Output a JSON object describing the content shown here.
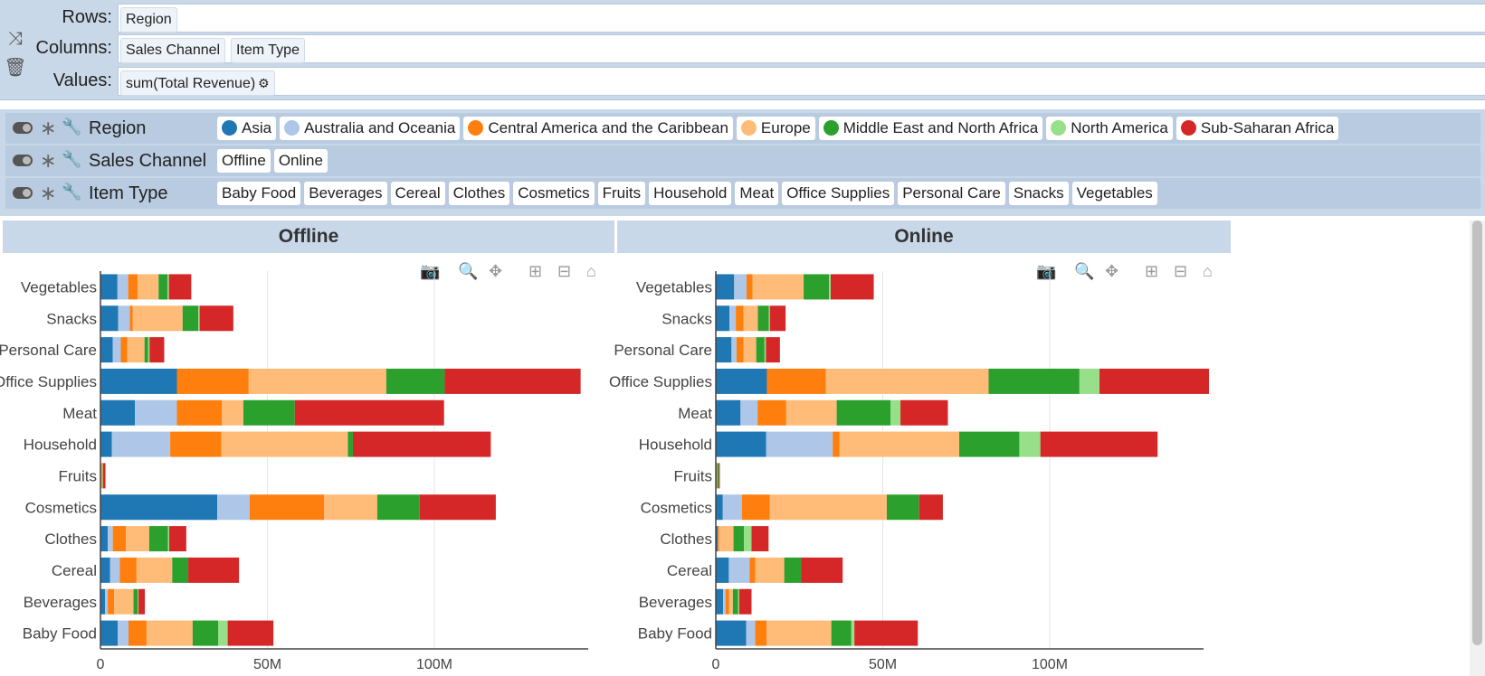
{
  "shelves": {
    "rows": {
      "label": "Rows:",
      "chips": [
        "Region"
      ]
    },
    "columns": {
      "label": "Columns:",
      "chips": [
        "Sales Channel",
        "Item Type"
      ]
    },
    "values": {
      "label": "Values:",
      "chips": [
        "sum(Total Revenue)"
      ]
    }
  },
  "filters": [
    {
      "name": "Region",
      "values": [
        "Asia",
        "Australia and Oceania",
        "Central America and the Caribbean",
        "Europe",
        "Middle East and North Africa",
        "North America",
        "Sub-Saharan Africa"
      ],
      "colors": [
        "#1f77b4",
        "#aec7e8",
        "#ff7f0e",
        "#ffbb78",
        "#2ca02c",
        "#98df8a",
        "#d62728"
      ]
    },
    {
      "name": "Sales Channel",
      "values": [
        "Offline",
        "Online"
      ]
    },
    {
      "name": "Item Type",
      "values": [
        "Baby Food",
        "Beverages",
        "Cereal",
        "Clothes",
        "Cosmetics",
        "Fruits",
        "Household",
        "Meat",
        "Office Supplies",
        "Personal Care",
        "Snacks",
        "Vegetables"
      ]
    }
  ],
  "facets": {
    "offline": "Offline",
    "online": "Online"
  },
  "icons": [
    "shuffle-icon",
    "trash-icon",
    "gear-icon",
    "toggle-icon",
    "asterisk-icon",
    "wrench-icon",
    "camera-icon",
    "zoom-icon",
    "pan-icon",
    "zoom-in-icon",
    "zoom-out-icon",
    "home-icon"
  ],
  "chart_data": [
    {
      "type": "bar",
      "orientation": "horizontal",
      "stacked": true,
      "title": "Offline",
      "categories": [
        "Baby Food",
        "Beverages",
        "Cereal",
        "Clothes",
        "Cosmetics",
        "Fruits",
        "Household",
        "Meat",
        "Office Supplies",
        "Personal Care",
        "Snacks",
        "Vegetables"
      ],
      "xticks": [
        "0",
        "50M",
        "100M"
      ],
      "xlim": [
        0,
        148
      ],
      "series": [
        {
          "name": "Asia",
          "color": "#1f77b4",
          "values": [
            5.2,
            1.4,
            2.9,
            2.2,
            35.0,
            0.1,
            3.4,
            10.3,
            22.9,
            3.7,
            5.3,
            5.1
          ]
        },
        {
          "name": "Australia and Oceania",
          "color": "#aec7e8",
          "values": [
            3.2,
            0.8,
            2.9,
            1.5,
            9.7,
            0.1,
            17.5,
            12.6,
            0.0,
            2.4,
            3.5,
            3.2
          ]
        },
        {
          "name": "Central America and the Caribbean",
          "color": "#ff7f0e",
          "values": [
            5.4,
            1.9,
            5.0,
            3.9,
            22.3,
            0.3,
            15.3,
            13.5,
            21.5,
            1.9,
            0.9,
            2.8
          ]
        },
        {
          "name": "Europe",
          "color": "#ffbb78",
          "values": [
            13.8,
            5.8,
            10.7,
            7.0,
            15.9,
            0.2,
            37.9,
            6.4,
            41.2,
            5.2,
            14.9,
            6.3
          ]
        },
        {
          "name": "Middle East and North Africa",
          "color": "#2ca02c",
          "values": [
            7.7,
            1.3,
            4.8,
            5.6,
            12.7,
            0.1,
            1.5,
            15.4,
            17.5,
            1.1,
            4.7,
            2.7
          ]
        },
        {
          "name": "North America",
          "color": "#98df8a",
          "values": [
            2.8,
            0.2,
            0.0,
            0.4,
            0.0,
            0.0,
            0.0,
            0.0,
            0.0,
            0.4,
            0.4,
            0.4
          ]
        },
        {
          "name": "Sub-Saharan Africa",
          "color": "#d62728",
          "values": [
            13.7,
            1.9,
            15.2,
            5.1,
            22.8,
            0.7,
            41.3,
            44.7,
            40.7,
            4.4,
            10.1,
            6.7
          ]
        }
      ]
    },
    {
      "type": "bar",
      "orientation": "horizontal",
      "stacked": true,
      "title": "Online",
      "categories": [
        "Baby Food",
        "Beverages",
        "Cereal",
        "Clothes",
        "Cosmetics",
        "Fruits",
        "Household",
        "Meat",
        "Office Supplies",
        "Personal Care",
        "Snacks",
        "Vegetables"
      ],
      "xticks": [
        "0",
        "50M",
        "100M"
      ],
      "xlim": [
        0,
        148
      ],
      "series": [
        {
          "name": "Asia",
          "color": "#1f77b4",
          "values": [
            9.1,
            2.2,
            3.9,
            0.6,
            2.1,
            0.2,
            15.1,
            7.4,
            15.3,
            4.7,
            4.1,
            5.5
          ]
        },
        {
          "name": "Australia and Oceania",
          "color": "#aec7e8",
          "values": [
            2.7,
            0.7,
            6.2,
            0.0,
            5.7,
            0.0,
            19.9,
            5.1,
            0.0,
            1.5,
            1.9,
            3.7
          ]
        },
        {
          "name": "Central America and the Caribbean",
          "color": "#ff7f0e",
          "values": [
            3.4,
            1.1,
            1.7,
            0.4,
            8.4,
            0.1,
            2.0,
            8.6,
            17.7,
            2.1,
            2.3,
            1.8
          ]
        },
        {
          "name": "Europe",
          "color": "#ffbb78",
          "values": [
            19.4,
            1.1,
            8.7,
            4.3,
            35.0,
            0.1,
            35.9,
            15.1,
            48.7,
            3.8,
            4.3,
            15.3
          ]
        },
        {
          "name": "Middle East and North Africa",
          "color": "#2ca02c",
          "values": [
            6.0,
            1.6,
            5.0,
            3.1,
            9.7,
            0.5,
            18.0,
            16.1,
            27.2,
            2.5,
            3.3,
            7.6
          ]
        },
        {
          "name": "North America",
          "color": "#98df8a",
          "values": [
            0.9,
            0.3,
            0.0,
            2.3,
            0.0,
            0.0,
            6.3,
            3.0,
            6.0,
            0.4,
            0.3,
            0.5
          ]
        },
        {
          "name": "Sub-Saharan Africa",
          "color": "#d62728",
          "values": [
            19.0,
            3.7,
            12.5,
            5.1,
            7.1,
            0.3,
            35.1,
            14.2,
            32.8,
            4.2,
            4.7,
            12.9
          ]
        }
      ]
    }
  ]
}
